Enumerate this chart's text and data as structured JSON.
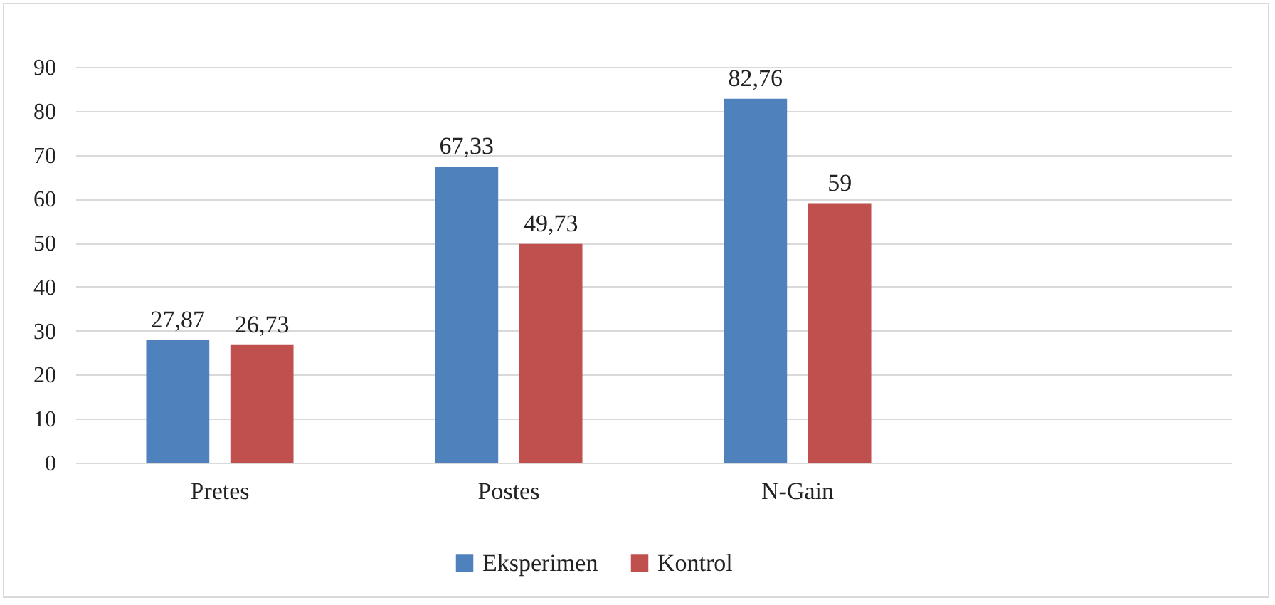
{
  "chart_data": {
    "type": "bar",
    "categories": [
      "Pretes",
      "Postes",
      "N-Gain",
      null
    ],
    "series": [
      {
        "name": "Eksperimen",
        "color": "#4f81bd",
        "values": [
          27.87,
          67.33,
          82.76,
          null
        ],
        "value_labels": [
          "27,87",
          "67,33",
          "82,76",
          null
        ]
      },
      {
        "name": "Kontrol",
        "color": "#c0504d",
        "values": [
          26.73,
          49.73,
          59,
          null
        ],
        "value_labels": [
          "26,73",
          "49,73",
          "59",
          null
        ]
      }
    ],
    "ylim": [
      0,
      90
    ],
    "yticks": [
      0,
      10,
      20,
      30,
      40,
      50,
      60,
      70,
      80,
      90
    ],
    "grid": "y",
    "legend": "bottom"
  }
}
